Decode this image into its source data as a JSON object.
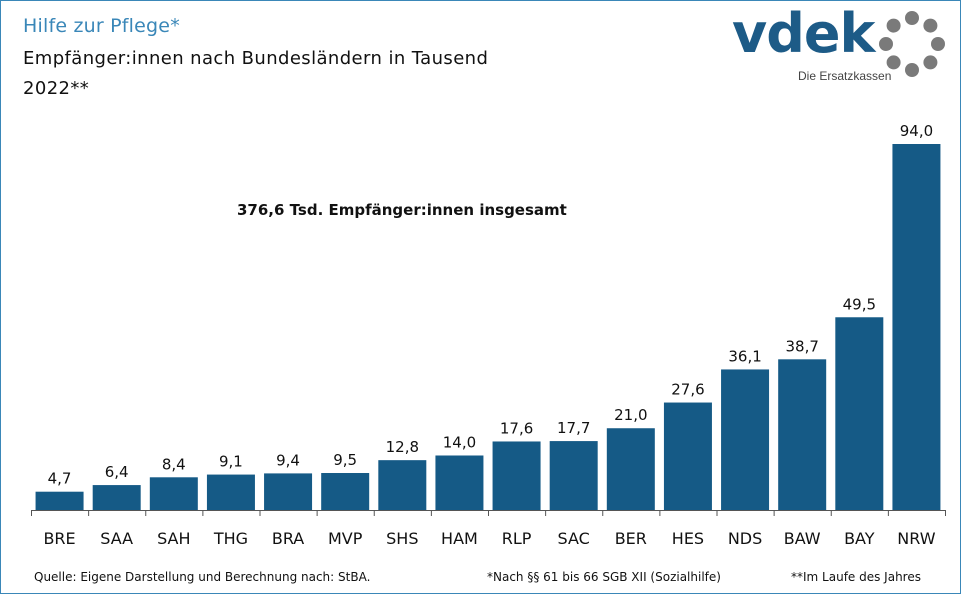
{
  "title": "Hilfe zur Pflege*",
  "subtitle": "Empfänger:innen nach Bundesländern in Tausend",
  "year": "2022**",
  "logo": {
    "text": "vdek",
    "tagline": "Die Ersatzkassen"
  },
  "annotation": "376,6 Tsd. Empfänger:innen insgesamt",
  "footer": {
    "source": "Quelle: Eigene Darstellung und Berechnung nach: StBA.",
    "note1": "*Nach §§ 61 bis 66 SGB XII (Sozialhilfe)",
    "note2": "**Im Laufe des Jahres"
  },
  "colors": {
    "bar": "#155a86",
    "accent": "#3a87b8",
    "ring": "#7a7a7a"
  },
  "chart_data": {
    "type": "bar",
    "title": "Hilfe zur Pflege*",
    "categories": [
      "BRE",
      "SAA",
      "SAH",
      "THG",
      "BRA",
      "MVP",
      "SHS",
      "HAM",
      "RLP",
      "SAC",
      "BER",
      "HES",
      "NDS",
      "BAW",
      "BAY",
      "NRW"
    ],
    "values": [
      4.7,
      6.4,
      8.4,
      9.1,
      9.4,
      9.5,
      12.8,
      14.0,
      17.6,
      17.7,
      21.0,
      27.6,
      36.1,
      38.7,
      49.5,
      94.0
    ],
    "labels": [
      "4,7",
      "6,4",
      "8,4",
      "9,1",
      "9,4",
      "9,5",
      "12,8",
      "14,0",
      "17,6",
      "17,7",
      "21,0",
      "27,6",
      "36,1",
      "38,7",
      "49,5",
      "94,0"
    ],
    "ylim": [
      0,
      94
    ],
    "grid": false,
    "legend": "none"
  }
}
